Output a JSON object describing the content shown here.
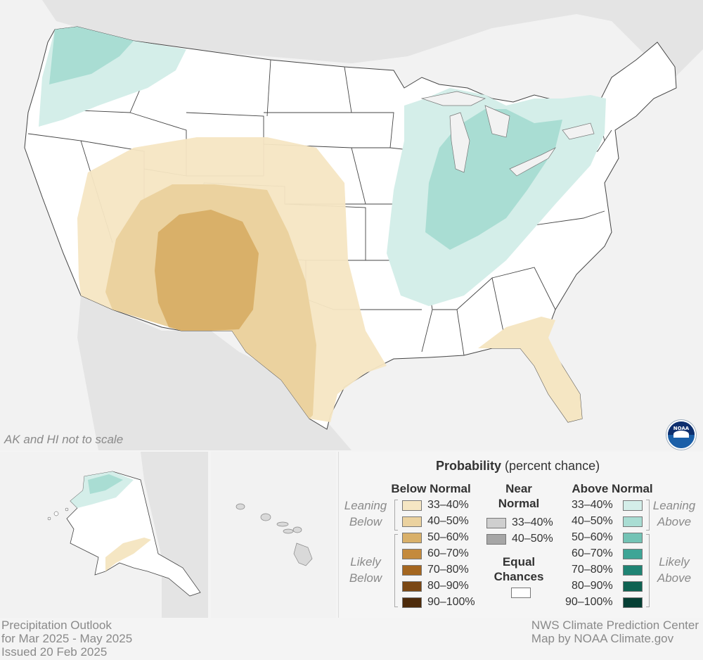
{
  "map": {
    "scale_note": "AK and HI not to scale",
    "logo_text": "NOAA",
    "colors": {
      "land": "#ffffff",
      "surrounding": "#e4e4e4",
      "water": "#f2f2f2",
      "border": "#444444"
    },
    "regions": [
      {
        "name": "likely-below-50-60",
        "category": "Below Normal",
        "probability": "50–60%",
        "area": "Arizona / New Mexico"
      },
      {
        "name": "leaning-below-40-50",
        "category": "Below Normal",
        "probability": "40–50%",
        "area": "Southwest to Texas"
      },
      {
        "name": "leaning-below-33-40",
        "category": "Below Normal",
        "probability": "33–40%",
        "area": "Southwest, Southern Plains, Texas, Florida"
      },
      {
        "name": "leaning-above-40-50",
        "category": "Above Normal",
        "probability": "40–50%",
        "area": "Ohio Valley / Great Lakes, Pacific Northwest"
      },
      {
        "name": "leaning-above-33-40",
        "category": "Above Normal",
        "probability": "33–40%",
        "area": "Northwest, Midwest, Northeast"
      }
    ]
  },
  "legend": {
    "title_bold": "Probability",
    "title_rest": " (percent chance)",
    "below_normal": {
      "heading": "Below Normal",
      "rows": [
        {
          "label": "33–40%",
          "color": "#f5e6c3"
        },
        {
          "label": "40–50%",
          "color": "#ebd29f"
        },
        {
          "label": "50–60%",
          "color": "#d9b069"
        },
        {
          "label": "60–70%",
          "color": "#c48a3c"
        },
        {
          "label": "70–80%",
          "color": "#a4661f"
        },
        {
          "label": "80–90%",
          "color": "#7a4714"
        },
        {
          "label": "90–100%",
          "color": "#4d2b0b"
        }
      ]
    },
    "near_normal": {
      "heading_line1": "Near",
      "heading_line2": "Normal",
      "rows": [
        {
          "label": "33–40%",
          "color": "#cfcfcf"
        },
        {
          "label": "40–50%",
          "color": "#a6a6a6"
        }
      ]
    },
    "equal_chances": {
      "line1": "Equal",
      "line2": "Chances",
      "color": "#ffffff"
    },
    "above_normal": {
      "heading": "Above Normal",
      "rows": [
        {
          "label": "33–40%",
          "color": "#d4eee9"
        },
        {
          "label": "40–50%",
          "color": "#a9ddd3"
        },
        {
          "label": "50–60%",
          "color": "#73c3b5"
        },
        {
          "label": "60–70%",
          "color": "#3ea596"
        },
        {
          "label": "70–80%",
          "color": "#1f8474"
        },
        {
          "label": "80–90%",
          "color": "#0e6252"
        },
        {
          "label": "90–100%",
          "color": "#053f34"
        }
      ]
    },
    "leaning_below": {
      "line1": "Leaning",
      "line2": "Below"
    },
    "likely_below": {
      "line1": "Likely",
      "line2": "Below"
    },
    "leaning_above": {
      "line1": "Leaning",
      "line2": "Above"
    },
    "likely_above": {
      "line1": "Likely",
      "line2": "Above"
    }
  },
  "footer": {
    "left_line1": "Precipitation Outlook",
    "left_line2": "for Mar 2025 - May 2025",
    "left_line3": "Issued 20 Feb 2025",
    "right_line1": "NWS Climate Prediction Center",
    "right_line2": "Map by NOAA Climate.gov"
  }
}
